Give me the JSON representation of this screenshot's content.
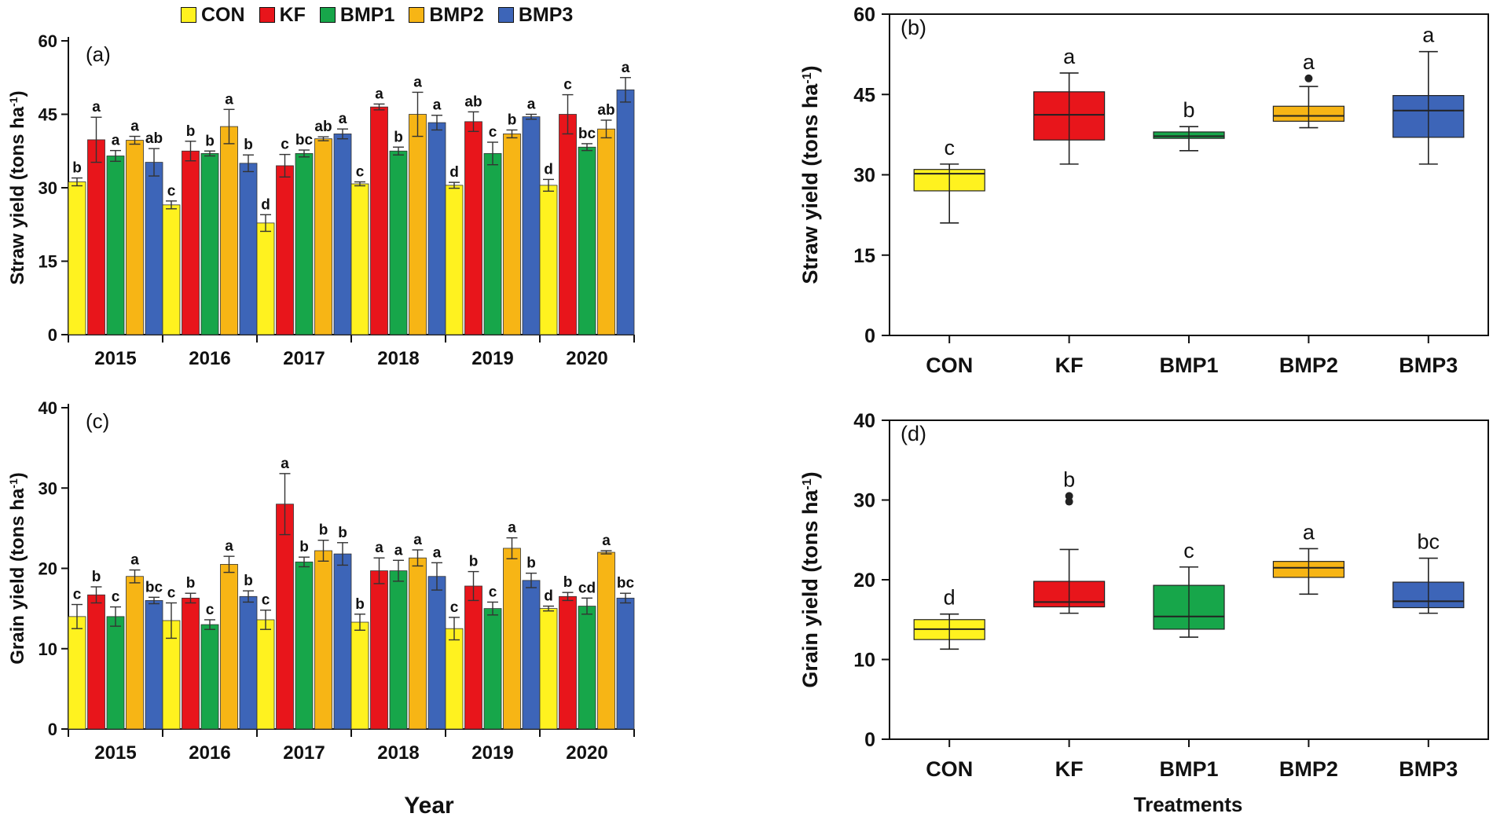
{
  "legend": {
    "items": [
      {
        "name": "CON",
        "color": "#FFF21F"
      },
      {
        "name": "KF",
        "color": "#E8151B"
      },
      {
        "name": "BMP1",
        "color": "#17A64A"
      },
      {
        "name": "BMP2",
        "color": "#F7B515"
      },
      {
        "name": "BMP3",
        "color": "#3D65B8"
      }
    ]
  },
  "figure": {
    "bottom_xlabel": "Year",
    "bottom_right_xlabel": "Treatments"
  },
  "chart_data": [
    {
      "type": "bar",
      "panel": "(a)",
      "title": "",
      "xlabel": "",
      "ylabel": "Straw yield  (tons ha",
      "ylabel_sup": "-1",
      "ylabel_close": ")",
      "ylim": [
        0,
        60
      ],
      "yticks": [
        0,
        15,
        30,
        45,
        60
      ],
      "categories": [
        "2015",
        "2016",
        "2017",
        "2018",
        "2019",
        "2020"
      ],
      "series": [
        {
          "name": "CON",
          "color": "#FFF21F",
          "values": [
            31.2,
            26.5,
            22.8,
            30.8,
            30.5,
            30.5
          ],
          "errors": [
            0.8,
            0.8,
            1.7,
            0.4,
            0.6,
            1.2
          ],
          "labels": [
            "b",
            "c",
            "d",
            "c",
            "d",
            "d"
          ]
        },
        {
          "name": "KF",
          "color": "#E8151B",
          "values": [
            39.8,
            37.5,
            34.5,
            46.5,
            43.5,
            45.0
          ],
          "errors": [
            4.6,
            2.0,
            2.3,
            0.6,
            2.0,
            4.0
          ],
          "labels": [
            "a",
            "b",
            "c",
            "a",
            "ab",
            "c"
          ]
        },
        {
          "name": "BMP1",
          "color": "#17A64A",
          "values": [
            36.5,
            37.0,
            37.0,
            37.5,
            37.0,
            38.3
          ],
          "errors": [
            1.1,
            0.5,
            0.7,
            0.8,
            2.3,
            0.7
          ],
          "labels": [
            "a",
            "b",
            "bc",
            "b",
            "c",
            "bc"
          ]
        },
        {
          "name": "BMP2",
          "color": "#F7B515",
          "values": [
            39.7,
            42.5,
            40.0,
            45.0,
            41.0,
            42.0
          ],
          "errors": [
            0.8,
            3.5,
            0.4,
            4.5,
            0.8,
            1.8
          ],
          "labels": [
            "a",
            "a",
            "ab",
            "a",
            "b",
            "ab"
          ]
        },
        {
          "name": "BMP3",
          "color": "#3D65B8",
          "values": [
            35.2,
            35.0,
            41.0,
            43.3,
            44.5,
            50.0
          ],
          "errors": [
            2.8,
            1.7,
            1.0,
            1.5,
            0.5,
            2.5
          ],
          "labels": [
            "ab",
            "b",
            "a",
            "a",
            "a",
            "a"
          ]
        }
      ]
    },
    {
      "type": "box",
      "panel": "(b)",
      "xlabel": "",
      "ylabel": "Straw yield  (tons ha",
      "ylabel_sup": "-1",
      "ylabel_close": ")",
      "ylim": [
        0,
        60
      ],
      "yticks": [
        0,
        15,
        30,
        45,
        60
      ],
      "categories": [
        "CON",
        "KF",
        "BMP1",
        "BMP2",
        "BMP3"
      ],
      "boxes": [
        {
          "name": "CON",
          "color": "#FFF21F",
          "min": 21.0,
          "q1": 27.0,
          "median": 30.2,
          "q3": 31.0,
          "max": 32.0,
          "outliers": [],
          "label": "c"
        },
        {
          "name": "KF",
          "color": "#E8151B",
          "min": 32.0,
          "q1": 36.5,
          "median": 41.2,
          "q3": 45.5,
          "max": 49.0,
          "outliers": [],
          "label": "a"
        },
        {
          "name": "BMP1",
          "color": "#17A64A",
          "min": 34.5,
          "q1": 36.8,
          "median": 37.2,
          "q3": 38.0,
          "max": 39.0,
          "outliers": [],
          "label": "b"
        },
        {
          "name": "BMP2",
          "color": "#F7B515",
          "min": 38.8,
          "q1": 40.0,
          "median": 41.0,
          "q3": 42.8,
          "max": 46.5,
          "outliers": [
            48.0
          ],
          "label": "a"
        },
        {
          "name": "BMP3",
          "color": "#3D65B8",
          "min": 32.0,
          "q1": 37.0,
          "median": 42.0,
          "q3": 44.8,
          "max": 53.0,
          "outliers": [],
          "label": "a"
        }
      ]
    },
    {
      "type": "bar",
      "panel": "(c)",
      "xlabel": "Year",
      "ylabel": "Grain yield  (tons ha",
      "ylabel_sup": "-1",
      "ylabel_close": ")",
      "ylim": [
        0,
        40
      ],
      "yticks": [
        0,
        10,
        20,
        30,
        40
      ],
      "categories": [
        "2015",
        "2016",
        "2017",
        "2018",
        "2019",
        "2020"
      ],
      "series": [
        {
          "name": "CON",
          "color": "#FFF21F",
          "values": [
            14.0,
            13.5,
            13.6,
            13.3,
            12.5,
            15.0
          ],
          "errors": [
            1.5,
            2.2,
            1.2,
            1.0,
            1.4,
            0.3
          ],
          "labels": [
            "c",
            "c",
            "c",
            "b",
            "c",
            "d"
          ]
        },
        {
          "name": "KF",
          "color": "#E8151B",
          "values": [
            16.7,
            16.3,
            28.0,
            19.7,
            17.8,
            16.5
          ],
          "errors": [
            1.0,
            0.6,
            3.8,
            1.6,
            1.8,
            0.5
          ],
          "labels": [
            "b",
            "b",
            "a",
            "a",
            "b",
            "b"
          ]
        },
        {
          "name": "BMP1",
          "color": "#17A64A",
          "values": [
            14.0,
            13.0,
            20.8,
            19.7,
            15.0,
            15.3
          ],
          "errors": [
            1.2,
            0.6,
            0.6,
            1.3,
            0.8,
            1.0
          ],
          "labels": [
            "c",
            "c",
            "b",
            "a",
            "c",
            "cd"
          ]
        },
        {
          "name": "BMP2",
          "color": "#F7B515",
          "values": [
            19.0,
            20.5,
            22.2,
            21.3,
            22.5,
            22.0
          ],
          "errors": [
            0.8,
            1.0,
            1.3,
            1.0,
            1.3,
            0.2
          ],
          "labels": [
            "a",
            "a",
            "b",
            "a",
            "a",
            "a"
          ]
        },
        {
          "name": "BMP3",
          "color": "#3D65B8",
          "values": [
            16.0,
            16.5,
            21.8,
            19.0,
            18.5,
            16.3
          ],
          "errors": [
            0.4,
            0.7,
            1.4,
            1.7,
            0.9,
            0.6
          ],
          "labels": [
            "bc",
            "b",
            "b",
            "a",
            "b",
            "bc"
          ]
        }
      ]
    },
    {
      "type": "box",
      "panel": "(d)",
      "xlabel": "Treatments",
      "ylabel": "Grain yield  (tons ha",
      "ylabel_sup": "-1",
      "ylabel_close": ")",
      "ylim": [
        0,
        40
      ],
      "yticks": [
        0,
        10,
        20,
        30,
        40
      ],
      "categories": [
        "CON",
        "KF",
        "BMP1",
        "BMP2",
        "BMP3"
      ],
      "boxes": [
        {
          "name": "CON",
          "color": "#FFF21F",
          "min": 11.3,
          "q1": 12.5,
          "median": 13.8,
          "q3": 15.0,
          "max": 15.7,
          "outliers": [],
          "label": "d"
        },
        {
          "name": "KF",
          "color": "#E8151B",
          "min": 15.8,
          "q1": 16.6,
          "median": 17.2,
          "q3": 19.8,
          "max": 23.8,
          "outliers": [
            30.5,
            29.8
          ],
          "label": "b"
        },
        {
          "name": "BMP1",
          "color": "#17A64A",
          "min": 12.8,
          "q1": 13.8,
          "median": 15.4,
          "q3": 19.3,
          "max": 21.6,
          "outliers": [],
          "label": "c"
        },
        {
          "name": "BMP2",
          "color": "#F7B515",
          "min": 18.2,
          "q1": 20.3,
          "median": 21.5,
          "q3": 22.3,
          "max": 23.9,
          "outliers": [],
          "label": "a"
        },
        {
          "name": "BMP3",
          "color": "#3D65B8",
          "min": 15.8,
          "q1": 16.5,
          "median": 17.3,
          "q3": 19.7,
          "max": 22.7,
          "outliers": [],
          "label": "bc"
        }
      ]
    }
  ]
}
